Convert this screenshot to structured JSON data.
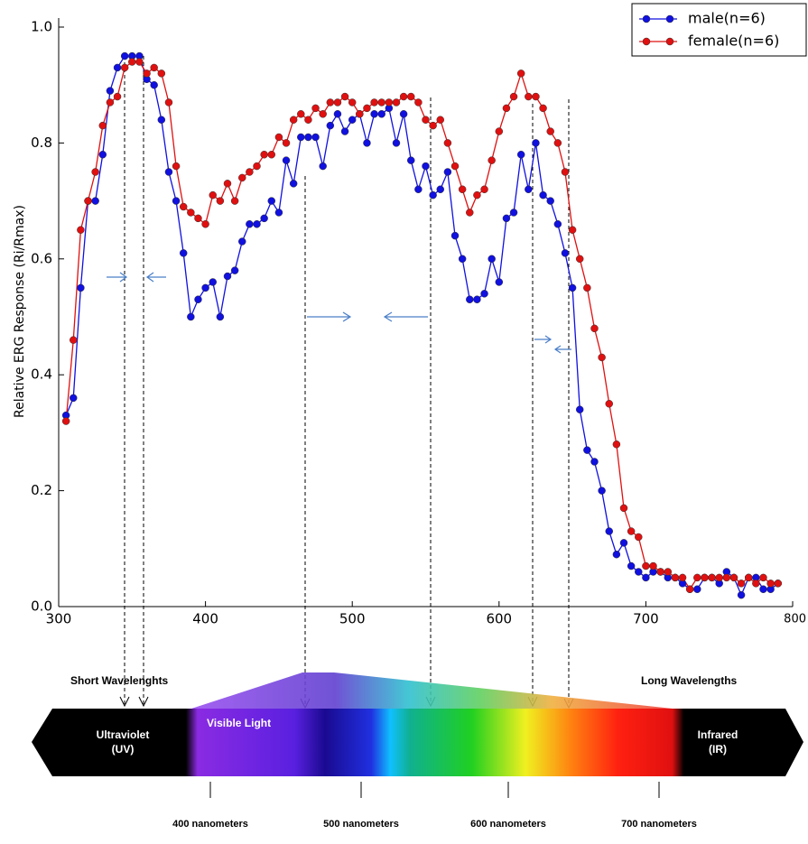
{
  "chart_data": {
    "type": "line",
    "y_label": "Relative ERG Response (Ri/Rmax)",
    "x": [
      305,
      310,
      315,
      320,
      325,
      330,
      335,
      340,
      345,
      350,
      355,
      360,
      365,
      370,
      375,
      380,
      385,
      390,
      395,
      400,
      405,
      410,
      415,
      420,
      425,
      430,
      435,
      440,
      445,
      450,
      455,
      460,
      465,
      470,
      475,
      480,
      485,
      490,
      495,
      500,
      505,
      510,
      515,
      520,
      525,
      530,
      535,
      540,
      545,
      550,
      555,
      560,
      565,
      570,
      575,
      580,
      585,
      590,
      595,
      600,
      605,
      610,
      615,
      620,
      625,
      630,
      635,
      640,
      645,
      650,
      655,
      660,
      665,
      670,
      675,
      680,
      685,
      690,
      695,
      700,
      705,
      710,
      715,
      720,
      725,
      730,
      735,
      740,
      745,
      750,
      755,
      760,
      765,
      770,
      775,
      780,
      785,
      790
    ],
    "series": [
      {
        "name": "male(n=6)",
        "color": "#1010e0",
        "values": [
          0.33,
          0.36,
          0.55,
          0.7,
          0.7,
          0.78,
          0.89,
          0.93,
          0.95,
          0.95,
          0.95,
          0.91,
          0.9,
          0.84,
          0.75,
          0.7,
          0.61,
          0.5,
          0.53,
          0.55,
          0.56,
          0.5,
          0.57,
          0.58,
          0.63,
          0.66,
          0.66,
          0.67,
          0.7,
          0.68,
          0.77,
          0.73,
          0.81,
          0.81,
          0.81,
          0.76,
          0.83,
          0.85,
          0.82,
          0.84,
          0.85,
          0.8,
          0.85,
          0.85,
          0.86,
          0.8,
          0.85,
          0.77,
          0.72,
          0.76,
          0.71,
          0.72,
          0.75,
          0.64,
          0.6,
          0.53,
          0.53,
          0.54,
          0.6,
          0.56,
          0.67,
          0.68,
          0.78,
          0.72,
          0.8,
          0.71,
          0.7,
          0.66,
          0.61,
          0.55,
          0.34,
          0.27,
          0.25,
          0.2,
          0.13,
          0.09,
          0.11,
          0.07,
          0.06,
          0.05,
          0.06,
          0.06,
          0.05,
          0.05,
          0.04,
          0.03,
          0.03,
          0.05,
          0.05,
          0.04,
          0.06,
          0.05,
          0.02,
          0.05,
          0.05,
          0.03,
          0.03,
          0.04
        ]
      },
      {
        "name": "female(n=6)",
        "color": "#e01010",
        "values": [
          0.32,
          0.46,
          0.65,
          0.7,
          0.75,
          0.83,
          0.87,
          0.88,
          0.93,
          0.94,
          0.94,
          0.92,
          0.93,
          0.92,
          0.87,
          0.76,
          0.69,
          0.68,
          0.67,
          0.66,
          0.71,
          0.7,
          0.73,
          0.7,
          0.74,
          0.75,
          0.76,
          0.78,
          0.78,
          0.81,
          0.8,
          0.84,
          0.85,
          0.84,
          0.86,
          0.85,
          0.87,
          0.87,
          0.88,
          0.87,
          0.85,
          0.86,
          0.87,
          0.87,
          0.87,
          0.87,
          0.88,
          0.88,
          0.87,
          0.84,
          0.83,
          0.84,
          0.8,
          0.76,
          0.72,
          0.68,
          0.71,
          0.72,
          0.77,
          0.82,
          0.86,
          0.88,
          0.92,
          0.88,
          0.88,
          0.86,
          0.82,
          0.8,
          0.75,
          0.65,
          0.6,
          0.55,
          0.48,
          0.43,
          0.35,
          0.28,
          0.17,
          0.13,
          0.12,
          0.07,
          0.07,
          0.06,
          0.06,
          0.05,
          0.05,
          0.03,
          0.05,
          0.05,
          0.05,
          0.05,
          0.05,
          0.05,
          0.04,
          0.05,
          0.04,
          0.05,
          0.04,
          0.04
        ]
      }
    ],
    "xlim": [
      300,
      800
    ],
    "xticks": [
      300,
      400,
      500,
      600,
      700,
      800
    ],
    "ylim": [
      0,
      1.03
    ],
    "yticks": [
      {
        "value": 0,
        "label": "0.0"
      },
      0.2,
      0.4,
      0.6,
      0.8,
      {
        "value": 1,
        "label": "1.0"
      }
    ],
    "legend": "upper right"
  },
  "spectrum": {
    "short_label": "Short Wavelenghts",
    "long_label": "Long Wavelengths",
    "visible_label": "Visible Light",
    "uv_label": [
      "Ultraviolet",
      "(UV)"
    ],
    "ir_label": [
      "Infrared",
      "(IR)"
    ],
    "scale_labels": [
      "400 nanometers",
      "500 nanometers",
      "600 nanometers",
      "700 nanometers"
    ]
  }
}
